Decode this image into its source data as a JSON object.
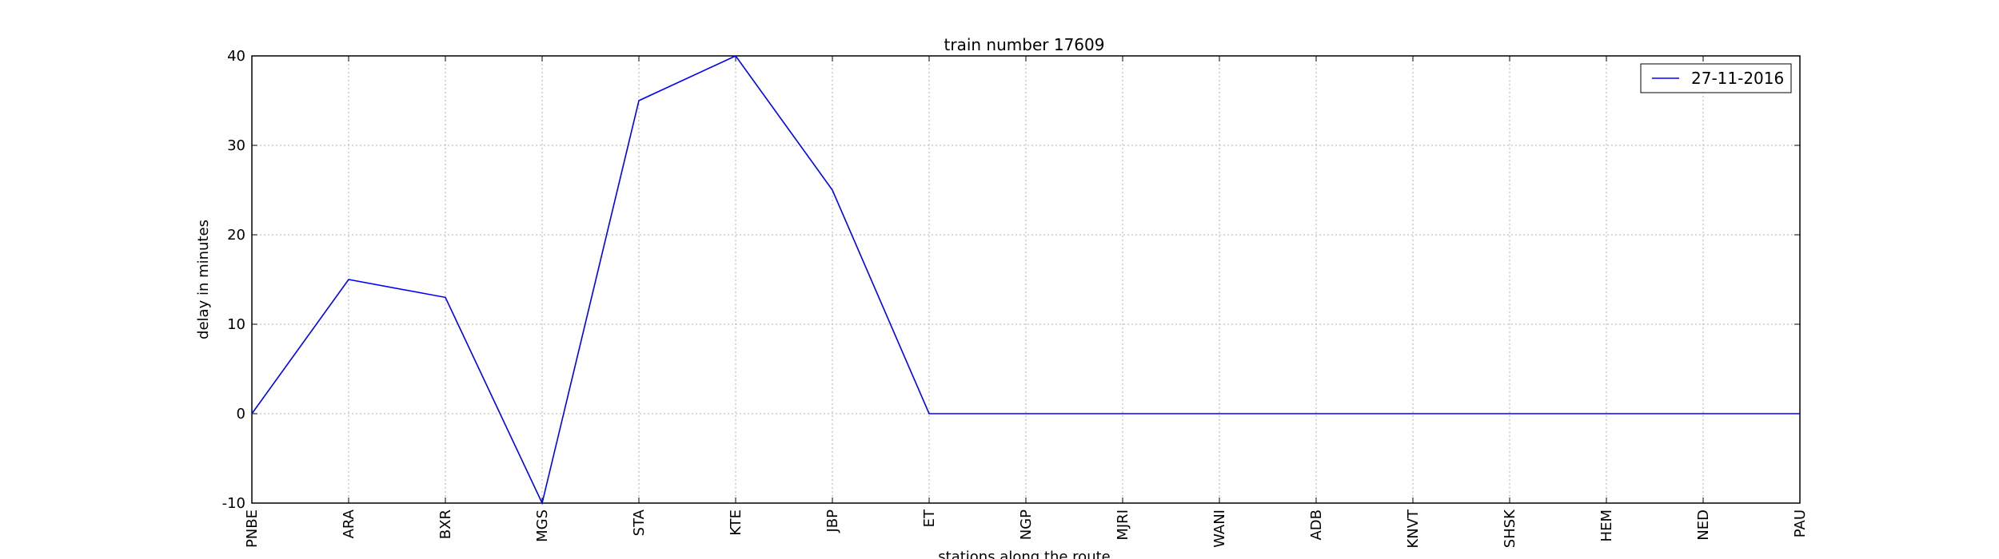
{
  "chart_data": {
    "type": "line",
    "title": "train number 17609",
    "xlabel": "stations along the route",
    "ylabel": "delay in minutes",
    "categories": [
      "PNBE",
      "ARA",
      "BXR",
      "MGS",
      "STA",
      "KTE",
      "JBP",
      "ET",
      "NGP",
      "MJRI",
      "WANI",
      "ADB",
      "KNVT",
      "SHSK",
      "HEM",
      "NED",
      "PAU"
    ],
    "series": [
      {
        "name": "27-11-2016",
        "color": "#0000ff",
        "values": [
          0,
          15,
          13,
          -10,
          35,
          40,
          25,
          0,
          0,
          0,
          0,
          0,
          0,
          0,
          0,
          0,
          0
        ]
      }
    ],
    "ylim": [
      -10,
      40
    ],
    "yticks": [
      -10,
      0,
      10,
      20,
      30,
      40
    ],
    "grid": true,
    "legend_position": "top-right"
  }
}
